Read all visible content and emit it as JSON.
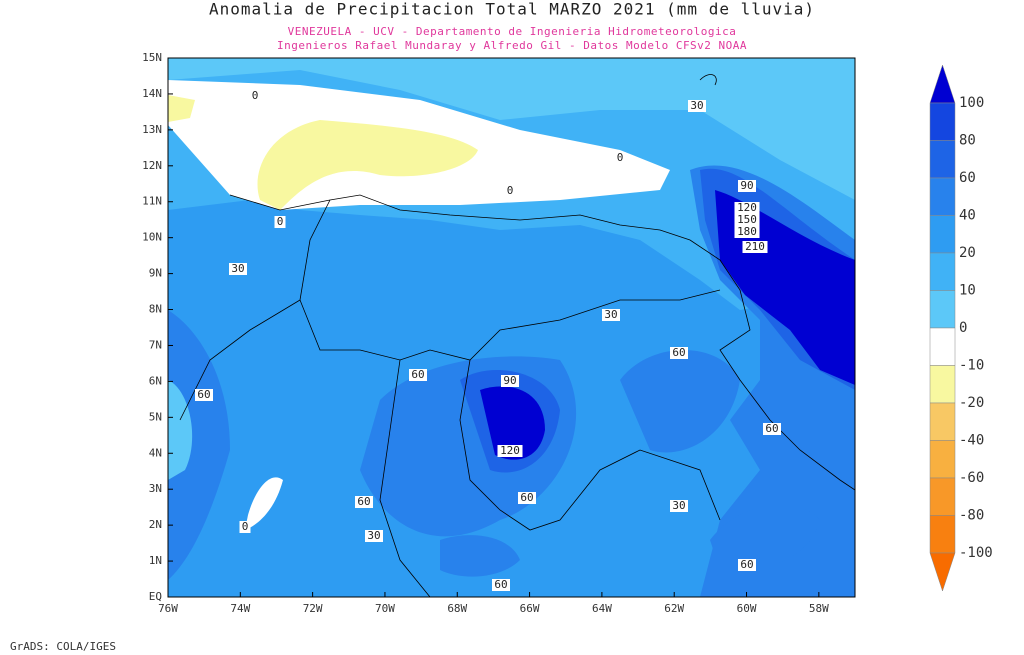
{
  "title": "Anomalia de Precipitacion Total MARZO 2021 (mm de lluvia)",
  "subtitle_lines": [
    "VENEZUELA - UCV - Departamento de Ingenieria Hidrometeorologica",
    "Ingenieros Rafael Mundaray y Alfredo Gil - Datos Modelo CFSv2 NOAA"
  ],
  "lat_labels": [
    "15N",
    "14N",
    "13N",
    "12N",
    "11N",
    "10N",
    "9N",
    "8N",
    "7N",
    "6N",
    "5N",
    "4N",
    "3N",
    "2N",
    "1N",
    "EQ"
  ],
  "lon_labels": [
    "76W",
    "74W",
    "72W",
    "70W",
    "68W",
    "66W",
    "64W",
    "62W",
    "60W",
    "58W"
  ],
  "colorbar": {
    "levels": [
      100,
      80,
      60,
      40,
      20,
      10,
      0,
      -10,
      -20,
      -40,
      -60,
      -80,
      -100
    ],
    "colors": [
      "#0000d2",
      "#1446e0",
      "#1e64e6",
      "#2882ec",
      "#2e9cf2",
      "#40b2f6",
      "#5cc8f8",
      "#ffffff",
      "#f8f8a0",
      "#f8c864",
      "#f8b040",
      "#f89828",
      "#f88010",
      "#f86c00"
    ]
  },
  "contour_labels": [
    30,
    0,
    0,
    0,
    0,
    30,
    90,
    120,
    150,
    180,
    210,
    30,
    60,
    60,
    60,
    90,
    120,
    60,
    60,
    60,
    30,
    30,
    0,
    60,
    60
  ],
  "footer": "GrADS: COLA/IGES"
}
